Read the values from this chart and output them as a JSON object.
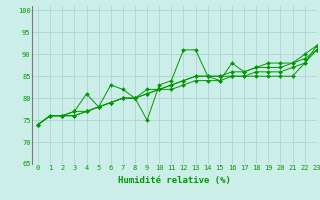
{
  "xlabel": "Humidité relative (%)",
  "bg_color": "#cceee8",
  "grid_color": "#aacccc",
  "line_color": "#009900",
  "xlim": [
    -0.5,
    23
  ],
  "ylim": [
    65,
    101
  ],
  "xticks": [
    0,
    1,
    2,
    3,
    4,
    5,
    6,
    7,
    8,
    9,
    10,
    11,
    12,
    13,
    14,
    15,
    16,
    17,
    18,
    19,
    20,
    21,
    22,
    23
  ],
  "yticks": [
    65,
    70,
    75,
    80,
    85,
    90,
    95,
    100
  ],
  "series": [
    [
      74,
      76,
      76,
      77,
      81,
      78,
      83,
      82,
      80,
      75,
      83,
      84,
      91,
      91,
      85,
      84,
      88,
      86,
      87,
      88,
      88,
      88,
      90,
      92
    ],
    [
      74,
      76,
      76,
      77,
      77,
      78,
      79,
      80,
      80,
      82,
      82,
      83,
      84,
      85,
      85,
      85,
      86,
      86,
      87,
      87,
      87,
      88,
      89,
      91
    ],
    [
      74,
      76,
      76,
      76,
      77,
      78,
      79,
      80,
      80,
      81,
      82,
      83,
      84,
      85,
      85,
      85,
      85,
      85,
      86,
      86,
      86,
      87,
      88,
      92
    ],
    [
      74,
      76,
      76,
      76,
      77,
      78,
      79,
      80,
      80,
      81,
      82,
      82,
      83,
      84,
      84,
      84,
      85,
      85,
      85,
      85,
      85,
      85,
      88,
      91
    ]
  ],
  "xlabel_fontsize": 6.5,
  "tick_fontsize": 5.0
}
